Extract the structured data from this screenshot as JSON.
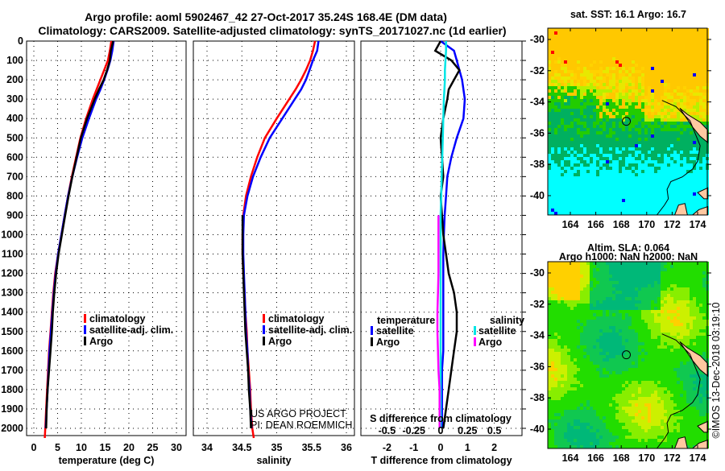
{
  "title": {
    "line1": "Argo profile: aoml 5902467_42 27-Oct-2017 35.24S 168.4E (DM data)",
    "line2": "Climatology: CARS2009. Satellite-adjusted climatology: synTS_20171027.nc (1d earlier)"
  },
  "colors": {
    "climatology": "#ff0000",
    "satellite": "#0000ff",
    "argo": "#000000",
    "salinity_satellite": "#00e5e5",
    "salinity_argo": "#ff00ff"
  },
  "credit": {
    "line1": "US ARGO PROJECT",
    "line2": "PI: DEAN ROEMMICH"
  },
  "watermark": "©IMOS 13-Dec-2018 03:19:10",
  "chart_data": [
    {
      "type": "line",
      "title": "",
      "xlabel": "temperature (deg C)",
      "ylabel": "",
      "xlim": [
        -1.5,
        32
      ],
      "ylim": [
        2037,
        0
      ],
      "xticks": [
        "0",
        "5",
        "10",
        "15",
        "20",
        "25",
        "30"
      ],
      "yticks": [
        "0",
        "100",
        "200",
        "300",
        "400",
        "500",
        "600",
        "700",
        "800",
        "900",
        "1000",
        "1100",
        "1200",
        "1300",
        "1400",
        "1500",
        "1600",
        "1700",
        "1800",
        "1900",
        "2000"
      ],
      "depth": [
        0,
        50,
        100,
        150,
        200,
        250,
        300,
        400,
        500,
        600,
        700,
        800,
        900,
        1000,
        1100,
        1200,
        1300,
        1400,
        1500,
        1600,
        1700,
        1800,
        1900,
        2000,
        2050
      ],
      "series": [
        {
          "name": "climatology",
          "values": [
            16.3,
            16.0,
            15.6,
            14.8,
            14.0,
            13.2,
            12.4,
            11.0,
            9.8,
            8.9,
            8.0,
            7.2,
            6.5,
            5.8,
            5.1,
            4.5,
            4.1,
            3.8,
            3.5,
            3.2,
            3.0,
            2.8,
            2.6,
            2.4,
            2.3
          ]
        },
        {
          "name": "satellite-adj. clim.",
          "values": [
            16.8,
            16.5,
            16.1,
            15.5,
            14.8,
            14.0,
            13.1,
            11.6,
            10.2,
            9.1,
            8.1,
            7.2,
            6.5,
            5.8,
            5.1,
            4.6,
            4.2,
            3.9,
            3.6,
            3.3,
            3.1,
            2.9,
            2.7,
            2.5,
            null
          ]
        },
        {
          "name": "Argo",
          "values": [
            16.7,
            16.2,
            16.0,
            15.4,
            14.7,
            13.7,
            12.8,
            11.2,
            9.9,
            9.0,
            8.1,
            7.3,
            6.6,
            5.9,
            5.2,
            4.7,
            4.3,
            4.0,
            3.8,
            3.5,
            3.2,
            2.9,
            2.7,
            2.6,
            null
          ]
        }
      ],
      "legend": [
        "climatology",
        "satellite-adj. clim.",
        "Argo"
      ],
      "legend_placement": "center-right"
    },
    {
      "type": "line",
      "xlabel": "salinity",
      "xlim": [
        33.8,
        36.12
      ],
      "ylim": [
        2037,
        0
      ],
      "xticks": [
        "34",
        "34.5",
        "35",
        "35.5",
        "36"
      ],
      "depth": [
        0,
        50,
        100,
        150,
        200,
        250,
        300,
        400,
        500,
        600,
        700,
        800,
        900,
        1000,
        1100,
        1200,
        1300,
        1400,
        1500,
        1600,
        1700,
        1800,
        1900,
        2000,
        2050
      ],
      "series": [
        {
          "name": "climatology",
          "values": [
            35.55,
            35.52,
            35.48,
            35.42,
            35.35,
            35.27,
            35.18,
            35.0,
            34.83,
            34.72,
            34.63,
            34.56,
            34.52,
            34.51,
            34.51,
            34.52,
            34.54,
            34.55,
            34.57,
            34.58,
            34.6,
            34.62,
            34.63,
            34.65,
            34.67
          ]
        },
        {
          "name": "satellite-adj. clim.",
          "values": [
            35.6,
            35.58,
            35.52,
            35.47,
            35.42,
            35.35,
            35.26,
            35.08,
            34.9,
            34.77,
            34.66,
            34.58,
            34.53,
            34.52,
            34.52,
            34.53,
            34.54,
            34.55,
            34.56,
            34.58,
            34.59,
            34.61,
            34.62,
            34.64,
            null
          ]
        },
        {
          "name": "Argo",
          "values": [
            null,
            null,
            null,
            null,
            null,
            null,
            null,
            null,
            null,
            null,
            null,
            null,
            34.51,
            34.51,
            34.51,
            34.52,
            34.53,
            34.54,
            34.55,
            34.57,
            34.59,
            34.6,
            34.62,
            34.63,
            null
          ]
        }
      ],
      "legend": [
        "climatology",
        "satellite-adj. clim.",
        "Argo"
      ],
      "legend_placement": "center-right"
    },
    {
      "type": "line",
      "xlabel": "T difference from climatology",
      "xlabel2": "S difference from climatology",
      "xlim": [
        -2.97,
        3.03
      ],
      "ylim": [
        2037,
        0
      ],
      "xticks": [
        "-2",
        "-1",
        "0",
        "1",
        "2"
      ],
      "xticks2": [
        "-0.5",
        "-0.25",
        "0",
        "0.25",
        "0.5"
      ],
      "depth": [
        0,
        50,
        100,
        150,
        200,
        250,
        300,
        400,
        500,
        600,
        700,
        800,
        900,
        1000,
        1100,
        1200,
        1300,
        1400,
        1500,
        1600,
        1700,
        1800,
        1900,
        2000,
        2050
      ],
      "series": [
        {
          "name": "temperature satellite",
          "axis": "T",
          "values": [
            0.0,
            0.5,
            0.6,
            0.7,
            0.8,
            0.85,
            0.9,
            0.85,
            0.6,
            0.4,
            0.25,
            0.2,
            0.15,
            0.12,
            0.1,
            0.1,
            0.1,
            0.1,
            0.1,
            0.1,
            0.05,
            0.05,
            0.05,
            0.05,
            null
          ]
        },
        {
          "name": "temperature Argo",
          "axis": "T",
          "values": [
            0.0,
            -0.2,
            0.4,
            0.7,
            0.5,
            0.3,
            0.25,
            0.1,
            0.0,
            0.05,
            0.1,
            0.0,
            0.05,
            0.1,
            0.2,
            0.3,
            0.5,
            0.6,
            0.6,
            0.5,
            0.4,
            0.3,
            0.2,
            0.1,
            null
          ]
        },
        {
          "name": "salinity satellite",
          "axis": "S",
          "values": [
            0.05,
            0.05,
            0.045,
            0.04,
            0.04,
            0.035,
            0.03,
            0.025,
            0.02,
            0.015,
            0.01,
            0.005,
            0.0,
            0.0,
            0.0,
            0.0,
            0.0,
            0.0,
            0.0,
            0.0,
            0.0,
            0.0,
            0.0,
            0.0,
            null
          ]
        },
        {
          "name": "salinity Argo",
          "axis": "S",
          "values": [
            null,
            null,
            null,
            null,
            null,
            null,
            null,
            null,
            null,
            null,
            null,
            null,
            -0.02,
            -0.02,
            -0.02,
            -0.02,
            -0.025,
            -0.03,
            -0.03,
            -0.025,
            -0.02,
            -0.01,
            -0.01,
            -0.01,
            null
          ]
        }
      ],
      "legend_t": {
        "heading": "temperature",
        "items": [
          "satellite",
          "Argo"
        ]
      },
      "legend_s": {
        "heading": "salinity",
        "items": [
          "satellite",
          "Argo"
        ]
      }
    },
    {
      "type": "heatmap",
      "title": "sat. SST: 16.1 Argo: 16.7",
      "xticks": [
        "164",
        "166",
        "168",
        "170",
        "172",
        "174"
      ],
      "yticks": [
        "-30",
        "-32",
        "-34",
        "-36",
        "-38",
        "-40"
      ],
      "marker": {
        "lon": 168.4,
        "lat": -35.24
      }
    },
    {
      "type": "heatmap",
      "title": "Altim. SLA: 0.064",
      "subtitle": "Argo h1000: NaN h2000: NaN",
      "xticks": [
        "164",
        "166",
        "168",
        "170",
        "172",
        "174"
      ],
      "yticks": [
        "-30",
        "-32",
        "-34",
        "-36",
        "-38",
        "-40"
      ],
      "marker": {
        "lon": 168.4,
        "lat": -35.24
      }
    }
  ]
}
